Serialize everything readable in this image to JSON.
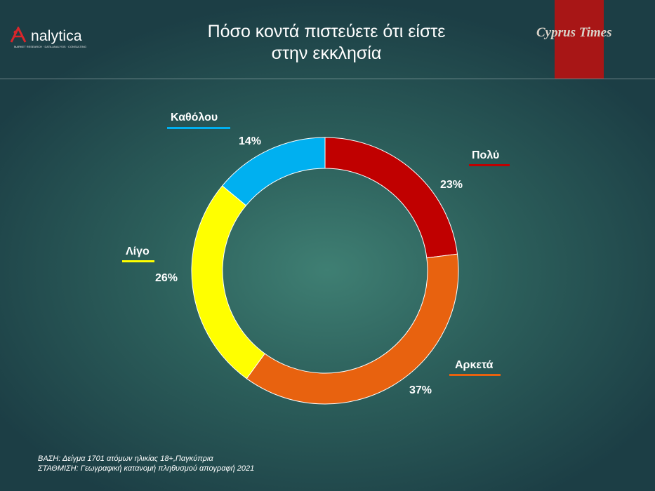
{
  "header": {
    "logo_text": "nalytica",
    "logo_subtitle": "MARKET RESEARCH · DATA ANALYSIS · CONSULTING",
    "title_line1": "Πόσο κοντά πιστεύετε ότι είστε",
    "title_line2": "στην εκκλησία",
    "brand": "Cyprus Times"
  },
  "chart_data": {
    "type": "pie",
    "donut": true,
    "title": "Πόσο κοντά πιστεύετε ότι είστε στην εκκλησία",
    "categories": [
      "Πολύ",
      "Αρκετά",
      "Λίγο",
      "Καθόλου"
    ],
    "values": [
      23,
      37,
      26,
      14
    ],
    "labels": [
      "23%",
      "37%",
      "26%",
      "14%"
    ],
    "colors": [
      "#c00000",
      "#e8620f",
      "#ffff00",
      "#00b0f0"
    ]
  },
  "footer": {
    "base": "ΒΑΣΗ: Δείγμα 1701 ατόμων ηλικίας 18+,Παγκύπρια",
    "weighting": "ΣΤΑΘΜΙΣΗ: Γεωγραφική κατανομή πληθυσμού απογραφή 2021"
  },
  "colors": {
    "brand_red": "#a81616"
  }
}
